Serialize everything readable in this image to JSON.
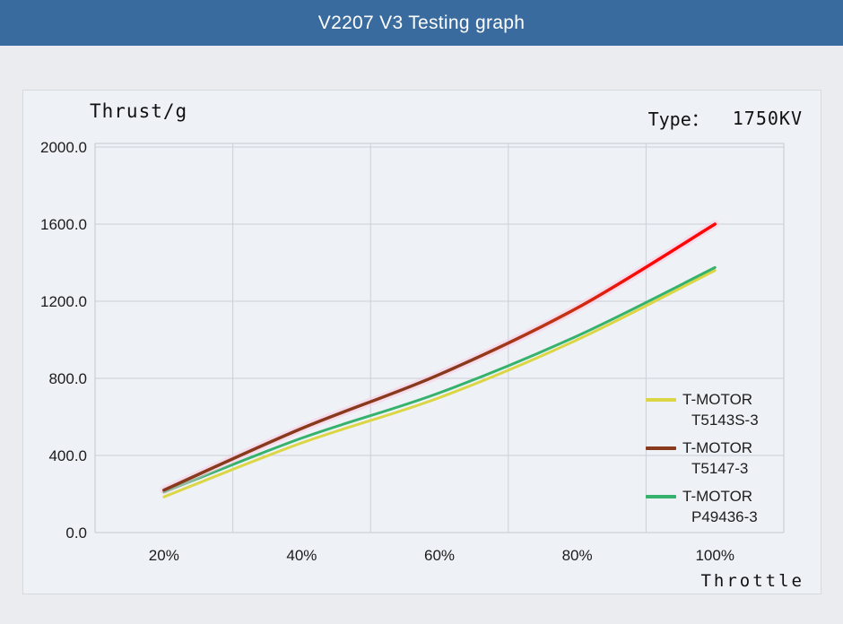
{
  "header": {
    "title": "V2207 V3 Testing graph"
  },
  "panel": {
    "y_axis_title": "Thrust/g",
    "type_label": "Type：",
    "type_value": "1750KV",
    "x_axis_title": "Throttle"
  },
  "colors": {
    "header_bg": "#3a6b9f",
    "page_bg": "#eaecf0",
    "card_bg": "#eef1f6",
    "grid": "#ccd1d8",
    "plot_border": "#c7ccd3",
    "tick_text": "#1b1b1b"
  },
  "chart_data": {
    "type": "line",
    "title": "V2207 V3 Testing graph",
    "xlabel": "Throttle",
    "ylabel": "Thrust/g",
    "categories": [
      "20%",
      "40%",
      "60%",
      "80%",
      "100%"
    ],
    "y_ticks": [
      2000.0,
      1600.0,
      1200.0,
      800.0,
      400.0,
      0.0
    ],
    "y_tick_labels": [
      "2000.0",
      "1600.0",
      "1200.0",
      "800.0",
      "400.0",
      "0.0"
    ],
    "ylim": [
      0,
      2000
    ],
    "grid": true,
    "smooth_lines": true,
    "legend_position": "inside-right",
    "series": [
      {
        "name": "T-MOTOR T5143S-3",
        "legend_lines": [
          "T-MOTOR",
          "T5143S-3"
        ],
        "color": "#dcd544",
        "z": 0,
        "values": [
          185,
          465,
          700,
          1000,
          1360
        ]
      },
      {
        "name": "T-MOTOR T5147-3",
        "legend_lines": [
          "T-MOTOR",
          "T5147-3"
        ],
        "color": "#8a3a1c",
        "color_end": "#ff0505",
        "glow": "#ffc0de",
        "z": 2,
        "values": [
          220,
          540,
          820,
          1165,
          1600
        ]
      },
      {
        "name": "T-MOTOR P49436-3",
        "legend_lines": [
          "T-MOTOR",
          "P49436-3"
        ],
        "color": "#35b26b",
        "z": 1,
        "values": [
          210,
          490,
          725,
          1020,
          1375
        ]
      }
    ]
  }
}
